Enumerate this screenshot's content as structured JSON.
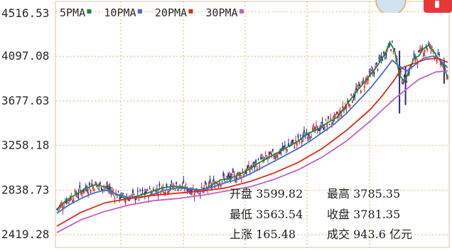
{
  "chart_data": {
    "type": "candlestick",
    "y_ticks": [
      "4516.53",
      "4097.08",
      "3677.63",
      "3258.18",
      "2838.73",
      "2419.28"
    ],
    "ylim": [
      2300,
      4560
    ],
    "legend": [
      {
        "name": "5PMA",
        "color": "#1a8a3a"
      },
      {
        "name": "10PMA",
        "color": "#3f6fd0"
      },
      {
        "name": "20PMA",
        "color": "#e02a1a"
      },
      {
        "name": "30PMA",
        "color": "#c060c0"
      }
    ],
    "grid": true,
    "series": [
      {
        "name": "5PMA",
        "color": "#1a8a3a",
        "points": [
          [
            0,
            2660
          ],
          [
            8,
            2745
          ],
          [
            16,
            2800
          ],
          [
            24,
            2855
          ],
          [
            32,
            2890
          ],
          [
            40,
            2870
          ],
          [
            48,
            2805
          ],
          [
            56,
            2765
          ],
          [
            64,
            2775
          ],
          [
            72,
            2800
          ],
          [
            80,
            2830
          ],
          [
            88,
            2860
          ],
          [
            96,
            2875
          ],
          [
            104,
            2870
          ],
          [
            112,
            2845
          ],
          [
            120,
            2830
          ],
          [
            128,
            2885
          ],
          [
            136,
            2935
          ],
          [
            144,
            2950
          ],
          [
            152,
            2990
          ],
          [
            160,
            3040
          ],
          [
            168,
            3100
          ],
          [
            176,
            3150
          ],
          [
            184,
            3195
          ],
          [
            192,
            3250
          ],
          [
            200,
            3300
          ],
          [
            208,
            3370
          ],
          [
            216,
            3410
          ],
          [
            224,
            3470
          ],
          [
            232,
            3520
          ],
          [
            240,
            3640
          ],
          [
            248,
            3760
          ],
          [
            256,
            3870
          ],
          [
            264,
            3980
          ],
          [
            272,
            4120
          ],
          [
            276,
            4230
          ],
          [
            280,
            4150
          ],
          [
            284,
            3920
          ],
          [
            288,
            3860
          ],
          [
            292,
            3960
          ],
          [
            296,
            4080
          ],
          [
            300,
            4100
          ],
          [
            304,
            4170
          ],
          [
            308,
            4200
          ],
          [
            312,
            4150
          ],
          [
            316,
            4080
          ],
          [
            320,
            4020
          ],
          [
            324,
            3900
          ]
        ]
      },
      {
        "name": "10PMA",
        "color": "#3f6fd0",
        "points": [
          [
            0,
            2620
          ],
          [
            10,
            2700
          ],
          [
            20,
            2760
          ],
          [
            30,
            2810
          ],
          [
            40,
            2840
          ],
          [
            50,
            2800
          ],
          [
            60,
            2770
          ],
          [
            70,
            2770
          ],
          [
            80,
            2800
          ],
          [
            90,
            2840
          ],
          [
            100,
            2860
          ],
          [
            110,
            2850
          ],
          [
            120,
            2840
          ],
          [
            130,
            2870
          ],
          [
            140,
            2910
          ],
          [
            150,
            2940
          ],
          [
            160,
            2990
          ],
          [
            170,
            3050
          ],
          [
            180,
            3110
          ],
          [
            190,
            3170
          ],
          [
            200,
            3230
          ],
          [
            210,
            3300
          ],
          [
            220,
            3380
          ],
          [
            230,
            3460
          ],
          [
            240,
            3560
          ],
          [
            250,
            3680
          ],
          [
            260,
            3800
          ],
          [
            270,
            3940
          ],
          [
            278,
            4060
          ],
          [
            284,
            4000
          ],
          [
            290,
            3960
          ],
          [
            296,
            4010
          ],
          [
            304,
            4080
          ],
          [
            312,
            4100
          ],
          [
            318,
            4060
          ],
          [
            324,
            3990
          ]
        ]
      },
      {
        "name": "20PMA",
        "color": "#e02a1a",
        "points": [
          [
            0,
            2500
          ],
          [
            20,
            2630
          ],
          [
            40,
            2720
          ],
          [
            60,
            2760
          ],
          [
            80,
            2790
          ],
          [
            100,
            2810
          ],
          [
            120,
            2830
          ],
          [
            140,
            2860
          ],
          [
            160,
            2920
          ],
          [
            180,
            3000
          ],
          [
            200,
            3100
          ],
          [
            220,
            3230
          ],
          [
            240,
            3400
          ],
          [
            260,
            3600
          ],
          [
            270,
            3730
          ],
          [
            280,
            3880
          ],
          [
            286,
            3990
          ],
          [
            296,
            4030
          ],
          [
            306,
            4070
          ],
          [
            316,
            4080
          ],
          [
            324,
            4040
          ]
        ]
      },
      {
        "name": "30PMA",
        "color": "#c060c0",
        "points": [
          [
            0,
            2440
          ],
          [
            20,
            2560
          ],
          [
            40,
            2640
          ],
          [
            60,
            2700
          ],
          [
            80,
            2740
          ],
          [
            100,
            2760
          ],
          [
            120,
            2790
          ],
          [
            140,
            2830
          ],
          [
            160,
            2870
          ],
          [
            180,
            2940
          ],
          [
            200,
            3030
          ],
          [
            220,
            3150
          ],
          [
            240,
            3300
          ],
          [
            260,
            3490
          ],
          [
            280,
            3700
          ],
          [
            300,
            3880
          ],
          [
            314,
            3950
          ],
          [
            324,
            3960
          ]
        ]
      }
    ]
  },
  "stats": [
    {
      "label": "开盘",
      "value": "3599.82"
    },
    {
      "label": "最高",
      "value": "3785.35"
    },
    {
      "label": "最低",
      "value": "3563.54"
    },
    {
      "label": "收盘",
      "value": "3781.35"
    },
    {
      "label": "上涨",
      "value": "165.48"
    },
    {
      "label": "成交",
      "value": "943.6 亿元"
    }
  ]
}
